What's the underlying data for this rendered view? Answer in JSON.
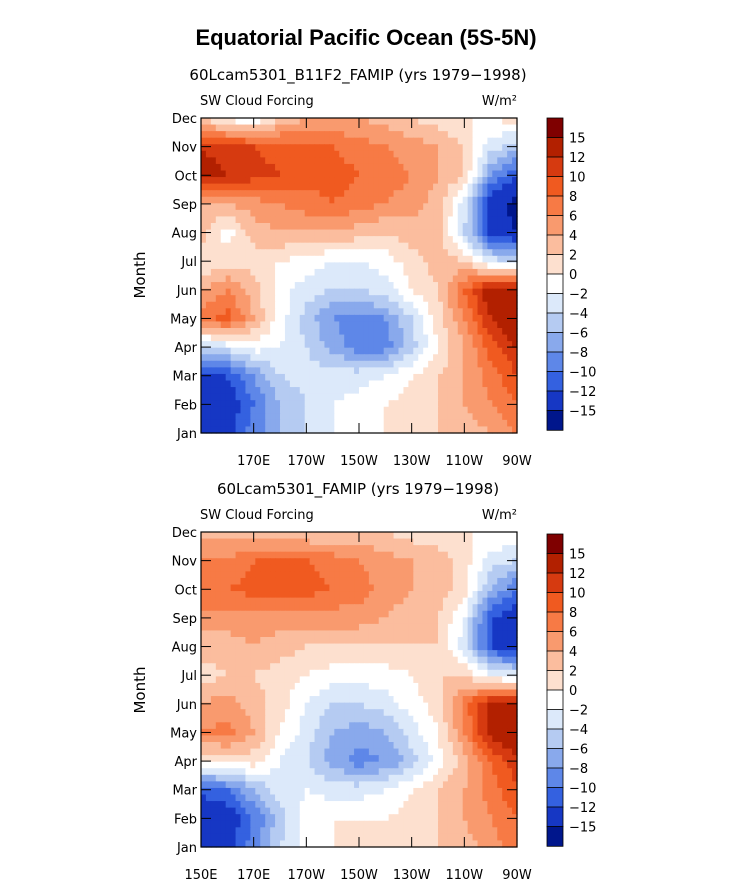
{
  "figure_title": "Equatorial Pacific Ocean (5S-5N)",
  "colorbar": {
    "levels_high_to_low": [
      "15",
      "12",
      "10",
      "8",
      "6",
      "4",
      "2",
      "0",
      "−2",
      "−4",
      "−6",
      "−8",
      "−10",
      "−12",
      "−15"
    ],
    "colors_high_to_low": [
      "#7f0000",
      "#b22000",
      "#d63a10",
      "#f05a20",
      "#f77a45",
      "#f99a6e",
      "#fbbd9e",
      "#fde0cf",
      "#ffffff",
      "#dce9fa",
      "#b5cbf2",
      "#89a9ec",
      "#5e87e8",
      "#3461e0",
      "#1637c4",
      "#00168c"
    ]
  },
  "chart_data": [
    {
      "type": "heatmap",
      "title": "60Lcam5301_B11F2_FAMIP (yrs 1979−1998)",
      "field_label": "SW Cloud Forcing",
      "units": "W/m²",
      "ylabel": "Month",
      "y_ticks": [
        "Jan",
        "Feb",
        "Mar",
        "Apr",
        "May",
        "Jun",
        "Jul",
        "Aug",
        "Sep",
        "Oct",
        "Nov",
        "Dec"
      ],
      "x_ticks": [
        "",
        "170E",
        "170W",
        "150W",
        "130W",
        "110W",
        "90W"
      ],
      "x_range_deg": [
        150,
        270
      ],
      "x_columns_deg": [
        150,
        160,
        170,
        180,
        190,
        200,
        210,
        220,
        230,
        240,
        250,
        260,
        270
      ],
      "values": [
        [
          -12,
          -13,
          -9,
          -6,
          -4,
          -2,
          -1,
          0,
          1,
          2,
          3,
          4,
          6
        ],
        [
          -14,
          -14,
          -10,
          -6,
          -4,
          -2,
          -1,
          0,
          1,
          2,
          4,
          6,
          8
        ],
        [
          -13,
          -12,
          -8,
          -4,
          -3,
          -3,
          -3,
          -2,
          0,
          2,
          4,
          7,
          10
        ],
        [
          -4,
          -3,
          -1,
          -2,
          -4,
          -7,
          -9,
          -9,
          -5,
          0,
          4,
          9,
          12
        ],
        [
          7,
          9,
          4,
          -1,
          -5,
          -8,
          -9,
          -8,
          -4,
          1,
          6,
          12,
          15
        ],
        [
          4,
          6,
          3,
          -1,
          -3,
          -4,
          -4,
          -3,
          0,
          2,
          8,
          14,
          15
        ],
        [
          0,
          1,
          1,
          0,
          -1,
          -2,
          -2,
          -1,
          1,
          3,
          2,
          -3,
          -4
        ],
        [
          3,
          -1,
          3,
          4,
          4,
          4,
          3,
          2,
          3,
          3,
          -4,
          -13,
          -15
        ],
        [
          4,
          4,
          5,
          6,
          7,
          8,
          7,
          6,
          5,
          3,
          -3,
          -14,
          -16
        ],
        [
          13,
          12,
          11,
          10,
          9,
          9,
          8,
          7,
          6,
          4,
          2,
          -8,
          -12
        ],
        [
          12,
          11,
          10,
          9,
          8,
          8,
          7,
          6,
          5,
          4,
          2,
          -3,
          -5
        ],
        [
          2,
          -1,
          -2,
          2,
          4,
          4,
          4,
          3,
          2,
          1,
          0,
          0,
          1
        ]
      ]
    },
    {
      "type": "heatmap",
      "title": "60Lcam5301_FAMIP (yrs 1979−1998)",
      "field_label": "SW Cloud Forcing",
      "units": "W/m²",
      "ylabel": "Month",
      "y_ticks": [
        "Jan",
        "Feb",
        "Mar",
        "Apr",
        "May",
        "Jun",
        "Jul",
        "Aug",
        "Sep",
        "Oct",
        "Nov",
        "Dec"
      ],
      "x_ticks": [
        "150E",
        "170E",
        "170W",
        "150W",
        "130W",
        "110W",
        "90W"
      ],
      "x_range_deg": [
        150,
        270
      ],
      "x_columns_deg": [
        150,
        160,
        170,
        180,
        190,
        200,
        210,
        220,
        230,
        240,
        250,
        260,
        270
      ],
      "values": [
        [
          -14,
          -13,
          -9,
          -4,
          -1,
          0,
          0,
          1,
          1,
          2,
          3,
          5,
          7
        ],
        [
          -15,
          -14,
          -10,
          -5,
          -1,
          0,
          0,
          0,
          1,
          2,
          4,
          6,
          8
        ],
        [
          -11,
          -10,
          -6,
          -3,
          -2,
          -3,
          -3,
          -2,
          0,
          2,
          4,
          7,
          10
        ],
        [
          0,
          1,
          1,
          -2,
          -4,
          -7,
          -9,
          -8,
          -5,
          -1,
          3,
          8,
          11
        ],
        [
          6,
          7,
          4,
          0,
          -3,
          -6,
          -7,
          -6,
          -3,
          0,
          6,
          13,
          15
        ],
        [
          4,
          5,
          3,
          1,
          -2,
          -4,
          -4,
          -3,
          -1,
          1,
          7,
          13,
          14
        ],
        [
          1,
          2,
          2,
          1,
          0,
          -1,
          -1,
          -1,
          0,
          2,
          2,
          -2,
          -3
        ],
        [
          3,
          3,
          4,
          3,
          2,
          2,
          2,
          2,
          2,
          2,
          -3,
          -12,
          -14
        ],
        [
          5,
          5,
          5,
          5,
          5,
          5,
          5,
          4,
          3,
          2,
          -2,
          -12,
          -14
        ],
        [
          8,
          8,
          9,
          9,
          9,
          8,
          7,
          5,
          4,
          3,
          1,
          -6,
          -10
        ],
        [
          6,
          6,
          8,
          8,
          8,
          7,
          6,
          5,
          4,
          3,
          1,
          -3,
          -4
        ],
        [
          3,
          3,
          3,
          3,
          2,
          2,
          2,
          2,
          1,
          1,
          0,
          0,
          0
        ]
      ]
    }
  ]
}
